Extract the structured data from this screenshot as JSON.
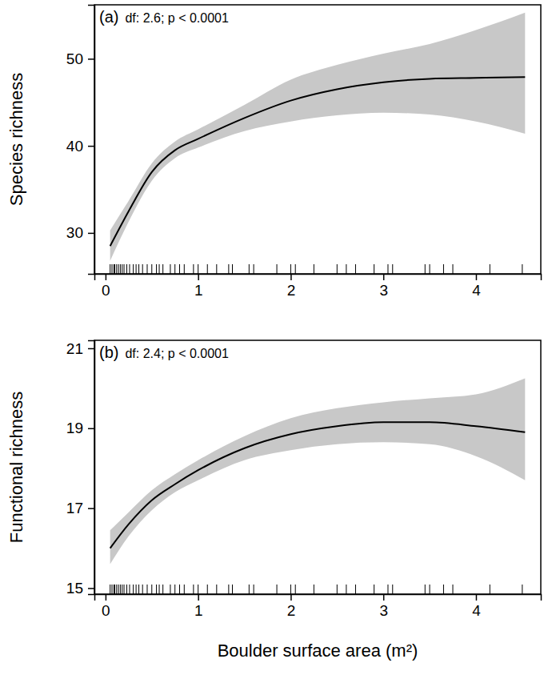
{
  "chart_data": [
    {
      "type": "line",
      "title": "(a)",
      "annotation": "df: 2.6; p < 0.0001",
      "y_label": "Species richness",
      "x": [
        0.05,
        0.25,
        0.5,
        0.75,
        1,
        1.5,
        2,
        2.5,
        3,
        3.5,
        4,
        4.53
      ],
      "series": [
        {
          "type": "area",
          "color": "#c8c8c8",
          "lower": [
            26.8,
            31.3,
            36.0,
            38.6,
            39.8,
            41.7,
            42.8,
            43.5,
            43.8,
            43.6,
            42.8,
            41.4
          ],
          "upper": [
            30.3,
            33.7,
            38.0,
            40.5,
            41.9,
            44.7,
            47.6,
            49.3,
            50.6,
            51.7,
            53.3,
            55.3
          ]
        },
        {
          "type": "line",
          "color": "#000000",
          "values": [
            28.5,
            32.5,
            37.0,
            39.5,
            40.8,
            43.2,
            45.2,
            46.5,
            47.3,
            47.7,
            47.8,
            47.9
          ]
        }
      ],
      "rug": [
        0.05,
        0.07,
        0.09,
        0.1,
        0.12,
        0.14,
        0.16,
        0.18,
        0.2,
        0.23,
        0.26,
        0.3,
        0.33,
        0.36,
        0.4,
        0.45,
        0.5,
        0.55,
        0.58,
        0.62,
        0.7,
        0.75,
        0.8,
        0.85,
        0.95,
        1.0,
        1.1,
        1.2,
        1.33,
        1.37,
        1.55,
        1.6,
        1.85,
        2.0,
        2.05,
        2.25,
        2.5,
        2.6,
        2.7,
        2.9,
        3.05,
        3.1,
        3.45,
        3.5,
        3.65,
        3.75,
        4.15,
        4.5
      ],
      "xlim": [
        -0.12,
        4.7
      ],
      "xticks": [
        0,
        1,
        2,
        3,
        4
      ],
      "ylim": [
        25.3,
        56.2
      ],
      "yticks": [
        30,
        40,
        50
      ]
    },
    {
      "type": "line",
      "title": "(b)",
      "annotation": "df: 2.4; p < 0.0001",
      "y_label": "Functional richness",
      "x_label": "Boulder surface area (m²)",
      "x": [
        0.05,
        0.25,
        0.5,
        0.75,
        1,
        1.5,
        2,
        2.5,
        3,
        3.5,
        4,
        4.53
      ],
      "series": [
        {
          "type": "area",
          "color": "#c8c8c8",
          "lower": [
            15.6,
            16.3,
            16.95,
            17.4,
            17.7,
            18.2,
            18.45,
            18.6,
            18.65,
            18.6,
            18.3,
            17.7
          ],
          "upper": [
            16.45,
            16.9,
            17.45,
            17.85,
            18.2,
            18.8,
            19.25,
            19.5,
            19.65,
            19.75,
            19.85,
            20.25
          ]
        },
        {
          "type": "line",
          "color": "#000000",
          "values": [
            16.0,
            16.6,
            17.2,
            17.6,
            17.95,
            18.5,
            18.85,
            19.05,
            19.15,
            19.15,
            19.05,
            18.9
          ]
        }
      ],
      "rug": [
        0.05,
        0.07,
        0.09,
        0.1,
        0.12,
        0.14,
        0.16,
        0.18,
        0.2,
        0.23,
        0.26,
        0.3,
        0.33,
        0.36,
        0.4,
        0.45,
        0.5,
        0.55,
        0.58,
        0.62,
        0.7,
        0.75,
        0.8,
        0.85,
        0.95,
        1.0,
        1.1,
        1.2,
        1.33,
        1.37,
        1.55,
        1.6,
        1.85,
        2.0,
        2.05,
        2.25,
        2.5,
        2.6,
        2.7,
        2.9,
        3.05,
        3.1,
        3.45,
        3.5,
        3.65,
        3.75,
        4.15,
        4.5
      ],
      "xlim": [
        -0.12,
        4.7
      ],
      "xticks": [
        0,
        1,
        2,
        3,
        4
      ],
      "ylim": [
        14.85,
        21.2
      ],
      "yticks": [
        15,
        17,
        19,
        21
      ]
    }
  ]
}
